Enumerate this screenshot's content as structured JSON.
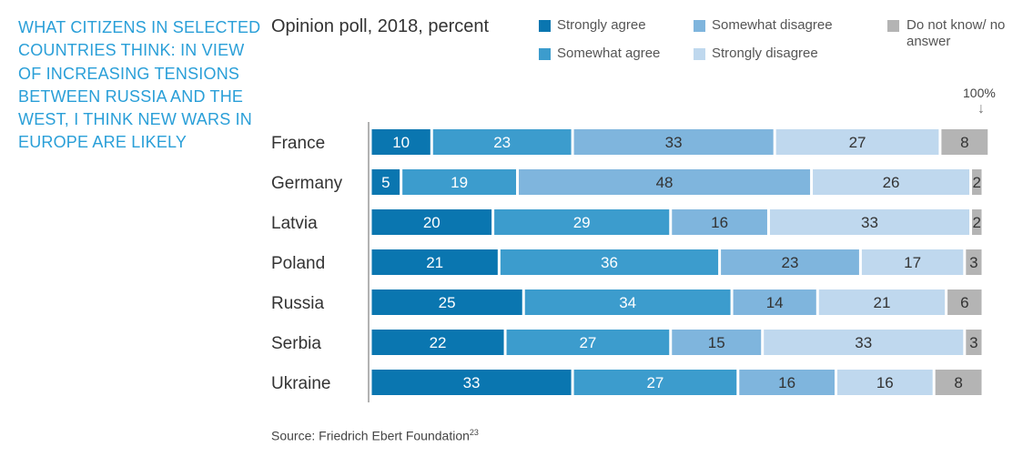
{
  "side_title": "WHAT CITIZENS IN SELECTED COUNTRIES THINK: IN VIEW OF INCREASING TENSIONS BETWEEN RUSSIA AND THE WEST, I THINK NEW WARS IN EUROPE ARE LIKELY",
  "subtitle": "Opinion poll, 2018, percent",
  "hundred_label": "100%",
  "source": "Source: Friedrich Ebert Foundation",
  "source_ref": "23",
  "legend": [
    {
      "label": "Strongly agree",
      "color": "#0a76b0"
    },
    {
      "label": "Somewhat agree",
      "color": "#3c9ccd"
    },
    {
      "label": "Somewhat disagree",
      "color": "#7fb5dd"
    },
    {
      "label": "Strongly disagree",
      "color": "#bfd8ee"
    },
    {
      "label": "Do not know/ no answer",
      "color": "#b4b4b4"
    }
  ],
  "chart_data": {
    "type": "bar",
    "orientation": "horizontal",
    "stacked": true,
    "categories": [
      "France",
      "Germany",
      "Latvia",
      "Poland",
      "Russia",
      "Serbia",
      "Ukraine"
    ],
    "series": [
      {
        "name": "Strongly agree",
        "values": [
          10,
          5,
          20,
          21,
          25,
          22,
          33
        ],
        "color": "#0a76b0"
      },
      {
        "name": "Somewhat agree",
        "values": [
          23,
          19,
          29,
          36,
          34,
          27,
          27
        ],
        "color": "#3c9ccd"
      },
      {
        "name": "Somewhat disagree",
        "values": [
          33,
          48,
          16,
          23,
          14,
          15,
          16
        ],
        "color": "#7fb5dd"
      },
      {
        "name": "Strongly disagree",
        "values": [
          27,
          26,
          33,
          17,
          21,
          33,
          16
        ],
        "color": "#bfd8ee"
      },
      {
        "name": "Do not know/ no answer",
        "values": [
          8,
          2,
          2,
          3,
          6,
          3,
          8
        ],
        "color": "#b4b4b4"
      }
    ],
    "xlim": [
      0,
      100
    ],
    "grid": false,
    "legend_position": "top"
  }
}
